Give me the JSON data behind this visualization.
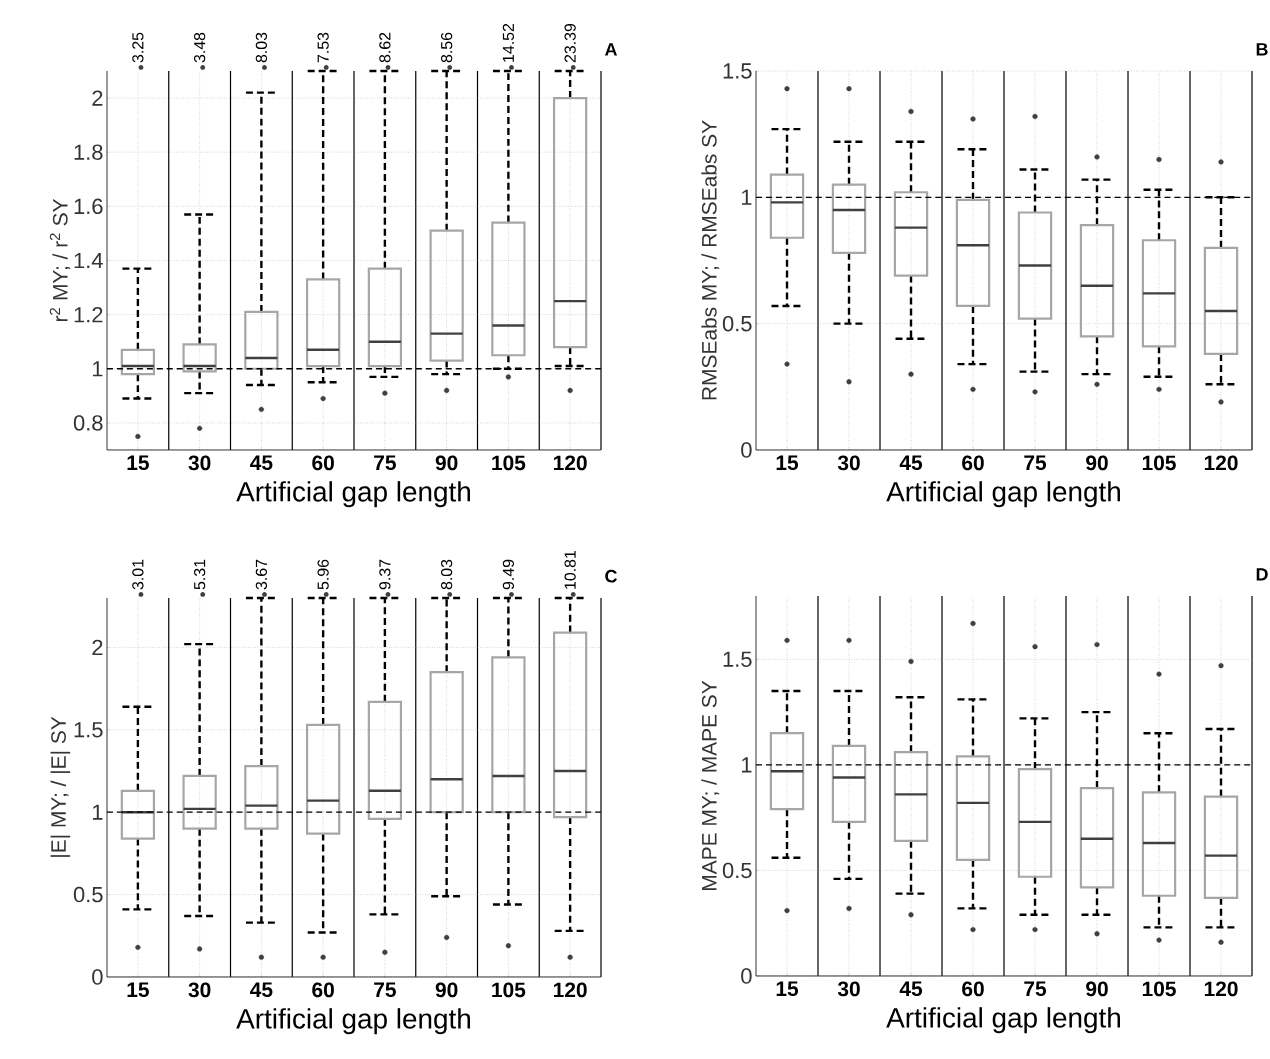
{
  "chart_data": [
    {
      "type": "box",
      "title": "A",
      "xlabel": "Artificial gap length",
      "ylabel": "r$^{2}$ MY; / r$^{2}$ SY",
      "categories": [
        "15",
        "30",
        "45",
        "60",
        "75",
        "90",
        "105",
        "120"
      ],
      "ylim": [
        0.7,
        2.1
      ],
      "yticks": [
        0.8,
        1,
        1.2,
        1.4,
        1.6,
        1.8,
        2
      ],
      "grid": true,
      "ref_lines": [
        {
          "axis": "y",
          "value": 1,
          "line_style": "dashed",
          "color": "#000000"
        }
      ],
      "series": [
        {
          "color": "#a6a6a6",
          "boxes": [
            {
              "low": 0.89,
              "q1": 0.98,
              "median": 1.01,
              "q3": 1.07,
              "high": 1.37,
              "outliers": [
                0.75
              ]
            },
            {
              "low": 0.91,
              "q1": 0.99,
              "median": 1.01,
              "q3": 1.09,
              "high": 1.57,
              "outliers": [
                0.78
              ]
            },
            {
              "low": 0.94,
              "q1": 1.0,
              "median": 1.04,
              "q3": 1.21,
              "high": 2.02,
              "outliers": [
                0.85
              ]
            },
            {
              "low": 0.95,
              "q1": 1.01,
              "median": 1.07,
              "q3": 1.33,
              "high": 2.1,
              "outliers": [
                0.89
              ]
            },
            {
              "low": 0.97,
              "q1": 1.01,
              "median": 1.1,
              "q3": 1.37,
              "high": 2.1,
              "outliers": [
                0.91
              ]
            },
            {
              "low": 0.98,
              "q1": 1.03,
              "median": 1.13,
              "q3": 1.51,
              "high": 2.1,
              "outliers": [
                0.92
              ]
            },
            {
              "low": 1.0,
              "q1": 1.05,
              "median": 1.16,
              "q3": 1.54,
              "high": 2.1,
              "outliers": [
                0.97
              ]
            },
            {
              "low": 1.01,
              "q1": 1.08,
              "median": 1.25,
              "q3": 2.0,
              "high": 2.1,
              "outliers": [
                0.92
              ]
            }
          ]
        }
      ],
      "annotations": [
        "3.25",
        "3.48",
        "8.03",
        "7.53",
        "8.62",
        "8.56",
        "14.52",
        "23.39"
      ]
    },
    {
      "type": "box",
      "title": "B",
      "xlabel": "Artificial gap length",
      "ylabel": "RMSEabs MY; / RMSEabs SY",
      "categories": [
        "15",
        "30",
        "45",
        "60",
        "75",
        "90",
        "105",
        "120"
      ],
      "ylim": [
        0,
        1.5
      ],
      "yticks": [
        0,
        0.5,
        1,
        1.5
      ],
      "grid": true,
      "ref_lines": [
        {
          "axis": "y",
          "value": 1,
          "line_style": "dashed",
          "color": "#000000"
        }
      ],
      "series": [
        {
          "color": "#a6a6a6",
          "boxes": [
            {
              "low": 0.57,
              "q1": 0.84,
              "median": 0.98,
              "q3": 1.09,
              "high": 1.27,
              "outliers": [
                0.34,
                1.43
              ]
            },
            {
              "low": 0.5,
              "q1": 0.78,
              "median": 0.95,
              "q3": 1.05,
              "high": 1.22,
              "outliers": [
                0.27,
                1.43
              ]
            },
            {
              "low": 0.44,
              "q1": 0.69,
              "median": 0.88,
              "q3": 1.02,
              "high": 1.22,
              "outliers": [
                0.3,
                1.34
              ]
            },
            {
              "low": 0.34,
              "q1": 0.57,
              "median": 0.81,
              "q3": 0.99,
              "high": 1.19,
              "outliers": [
                0.24,
                1.31
              ]
            },
            {
              "low": 0.31,
              "q1": 0.52,
              "median": 0.73,
              "q3": 0.94,
              "high": 1.11,
              "outliers": [
                0.23,
                1.32
              ]
            },
            {
              "low": 0.3,
              "q1": 0.45,
              "median": 0.65,
              "q3": 0.89,
              "high": 1.07,
              "outliers": [
                0.26,
                1.16
              ]
            },
            {
              "low": 0.29,
              "q1": 0.41,
              "median": 0.62,
              "q3": 0.83,
              "high": 1.03,
              "outliers": [
                0.24,
                1.15
              ]
            },
            {
              "low": 0.26,
              "q1": 0.38,
              "median": 0.55,
              "q3": 0.8,
              "high": 1.0,
              "outliers": [
                0.19,
                1.14
              ]
            }
          ]
        }
      ]
    },
    {
      "type": "box",
      "title": "C",
      "xlabel": "Artificial gap length",
      "ylabel": "|E| MY; / |E| SY",
      "categories": [
        "15",
        "30",
        "45",
        "60",
        "75",
        "90",
        "105",
        "120"
      ],
      "ylim": [
        0,
        2.3
      ],
      "yticks": [
        0,
        0.5,
        1,
        1.5,
        2
      ],
      "grid": true,
      "ref_lines": [
        {
          "axis": "y",
          "value": 1,
          "line_style": "dashed",
          "color": "#000000"
        }
      ],
      "series": [
        {
          "color": "#a6a6a6",
          "boxes": [
            {
              "low": 0.41,
              "q1": 0.84,
              "median": 1.0,
              "q3": 1.13,
              "high": 1.64,
              "outliers": [
                0.18
              ]
            },
            {
              "low": 0.37,
              "q1": 0.9,
              "median": 1.02,
              "q3": 1.22,
              "high": 2.02,
              "outliers": [
                0.17
              ]
            },
            {
              "low": 0.33,
              "q1": 0.9,
              "median": 1.04,
              "q3": 1.28,
              "high": 2.3,
              "outliers": [
                0.12
              ]
            },
            {
              "low": 0.27,
              "q1": 0.87,
              "median": 1.07,
              "q3": 1.53,
              "high": 2.3,
              "outliers": [
                0.12
              ]
            },
            {
              "low": 0.38,
              "q1": 0.96,
              "median": 1.13,
              "q3": 1.67,
              "high": 2.3,
              "outliers": [
                0.15
              ]
            },
            {
              "low": 0.49,
              "q1": 1.0,
              "median": 1.2,
              "q3": 1.85,
              "high": 2.3,
              "outliers": [
                0.24
              ]
            },
            {
              "low": 0.44,
              "q1": 1.0,
              "median": 1.22,
              "q3": 1.94,
              "high": 2.3,
              "outliers": [
                0.19
              ]
            },
            {
              "low": 0.28,
              "q1": 0.97,
              "median": 1.25,
              "q3": 2.09,
              "high": 2.3,
              "outliers": [
                0.12
              ]
            }
          ]
        }
      ],
      "annotations": [
        "3.01",
        "5.31",
        "3.67",
        "5.96",
        "9.37",
        "8.03",
        "9.49",
        "10.81"
      ]
    },
    {
      "type": "box",
      "title": "D",
      "xlabel": "Artificial gap length",
      "ylabel": "MAPE MY; / MAPE SY",
      "categories": [
        "15",
        "30",
        "45",
        "60",
        "75",
        "90",
        "105",
        "120"
      ],
      "ylim": [
        0,
        1.8
      ],
      "yticks": [
        0,
        0.5,
        1,
        1.5
      ],
      "grid": true,
      "ref_lines": [
        {
          "axis": "y",
          "value": 1,
          "line_style": "dashed",
          "color": "#000000"
        }
      ],
      "series": [
        {
          "color": "#a6a6a6",
          "boxes": [
            {
              "low": 0.56,
              "q1": 0.79,
              "median": 0.97,
              "q3": 1.15,
              "high": 1.35,
              "outliers": [
                0.31,
                1.59
              ]
            },
            {
              "low": 0.46,
              "q1": 0.73,
              "median": 0.94,
              "q3": 1.09,
              "high": 1.35,
              "outliers": [
                0.32,
                1.59
              ]
            },
            {
              "low": 0.39,
              "q1": 0.64,
              "median": 0.86,
              "q3": 1.06,
              "high": 1.32,
              "outliers": [
                0.29,
                1.49
              ]
            },
            {
              "low": 0.32,
              "q1": 0.55,
              "median": 0.82,
              "q3": 1.04,
              "high": 1.31,
              "outliers": [
                0.22,
                1.67
              ]
            },
            {
              "low": 0.29,
              "q1": 0.47,
              "median": 0.73,
              "q3": 0.98,
              "high": 1.22,
              "outliers": [
                0.22,
                1.56
              ]
            },
            {
              "low": 0.29,
              "q1": 0.42,
              "median": 0.65,
              "q3": 0.89,
              "high": 1.25,
              "outliers": [
                0.2,
                1.57
              ]
            },
            {
              "low": 0.23,
              "q1": 0.38,
              "median": 0.63,
              "q3": 0.87,
              "high": 1.15,
              "outliers": [
                0.17,
                1.43
              ]
            },
            {
              "low": 0.23,
              "q1": 0.37,
              "median": 0.57,
              "q3": 0.85,
              "high": 1.17,
              "outliers": [
                0.16,
                1.47
              ]
            }
          ]
        }
      ]
    }
  ]
}
